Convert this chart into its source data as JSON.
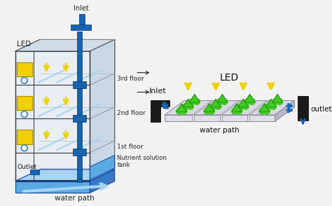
{
  "bg_color": "#f2f2f2",
  "blue_dark": "#1464b4",
  "blue_light": "#a8d4f0",
  "blue_med": "#4090d0",
  "blue_tank": "#5aaae0",
  "yellow": "#f0d000",
  "green": "#40cc20",
  "gray_light": "#e0e0e8",
  "gray_med": "#b8b8c8",
  "gray_dark": "#888898",
  "black_pipe": "#1a1a1a",
  "white": "#ffffff",
  "floor_labels": [
    "3rd floor",
    "2nd floor",
    "1st floor"
  ],
  "left_label": "LED",
  "outlet_label": "Outlet",
  "inlet_label": "Inlet",
  "nutrient_label": "Nutrient solution\ntank",
  "water_path_label": "water path",
  "right_inlet_label": "Inlet",
  "right_led_label": "LED",
  "right_water_label": "water path",
  "right_outlet_label": "outlet"
}
